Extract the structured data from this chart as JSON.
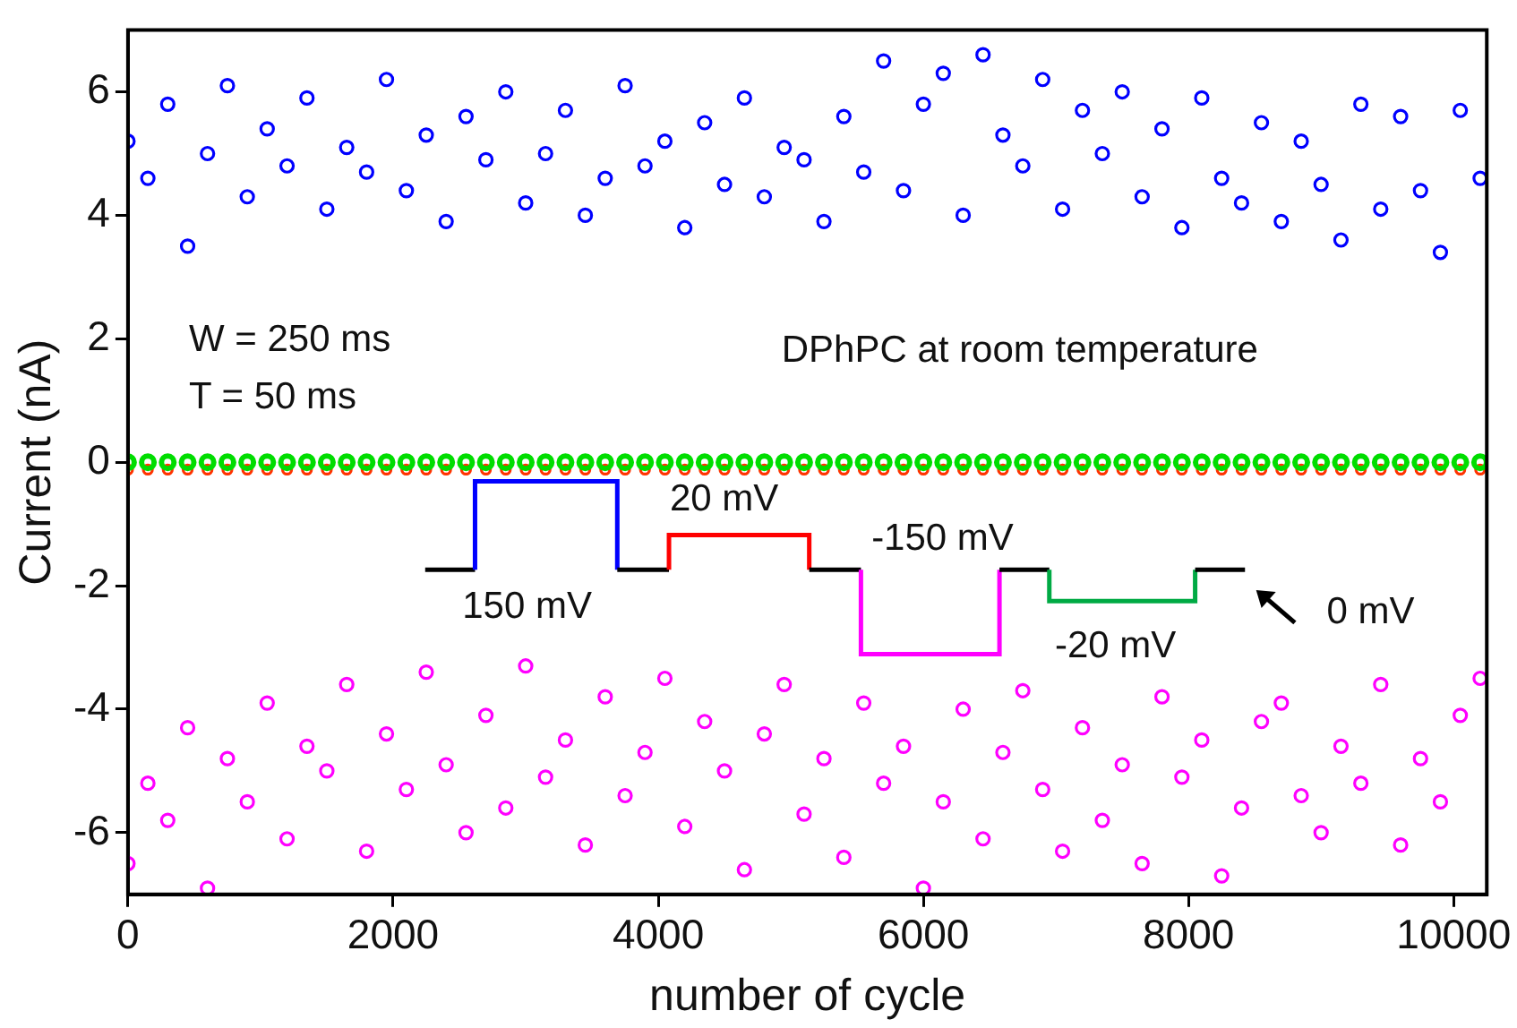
{
  "chart_data": {
    "type": "scatter",
    "xlabel": "number of cycle",
    "ylabel": "Current (nA)",
    "xlim": [
      0,
      10250
    ],
    "ylim": [
      -7,
      7
    ],
    "xticks": [
      0,
      2000,
      4000,
      6000,
      8000,
      10000
    ],
    "yticks": [
      -6,
      -4,
      -2,
      0,
      2,
      4,
      6
    ],
    "grid": false,
    "legend": false,
    "marker": "circle",
    "x": [
      0,
      150,
      300,
      450,
      600,
      750,
      900,
      1050,
      1200,
      1350,
      1500,
      1650,
      1800,
      1950,
      2100,
      2250,
      2400,
      2550,
      2700,
      2850,
      3000,
      3150,
      3300,
      3450,
      3600,
      3750,
      3900,
      4050,
      4200,
      4350,
      4500,
      4650,
      4800,
      4950,
      5100,
      5250,
      5400,
      5550,
      5700,
      5850,
      6000,
      6150,
      6300,
      6450,
      6600,
      6750,
      6900,
      7050,
      7200,
      7350,
      7500,
      7650,
      7800,
      7950,
      8100,
      8250,
      8400,
      8550,
      8700,
      8850,
      9000,
      9150,
      9300,
      9450,
      9600,
      9750,
      9900,
      10050,
      10200
    ],
    "series": [
      {
        "color": "#0000ff",
        "values": [
          5.2,
          4.6,
          5.8,
          3.5,
          5.0,
          6.1,
          4.3,
          5.4,
          4.8,
          5.9,
          4.1,
          5.1,
          4.7,
          6.2,
          4.4,
          5.3,
          3.9,
          5.6,
          4.9,
          6.0,
          4.2,
          5.0,
          5.7,
          4.0,
          4.6,
          6.1,
          4.8,
          5.2,
          3.8,
          5.5,
          4.5,
          5.9,
          4.3,
          5.1,
          4.9,
          3.9,
          5.6,
          4.7,
          6.5,
          4.4,
          5.8,
          6.3,
          4.0,
          6.6,
          5.3,
          4.8,
          6.2,
          4.1,
          5.7,
          5.0,
          6.0,
          4.3,
          5.4,
          3.8,
          5.9,
          4.6,
          4.2,
          5.5,
          3.9,
          5.2,
          4.5,
          3.6,
          5.8,
          4.1,
          5.6,
          4.4,
          3.4,
          5.7,
          4.6
        ]
      },
      {
        "color": "#ff00ff",
        "values": [
          -6.5,
          -5.2,
          -5.8,
          -4.3,
          -6.9,
          -4.8,
          -5.5,
          -3.9,
          -6.1,
          -4.6,
          -5.0,
          -3.6,
          -6.3,
          -4.4,
          -5.3,
          -3.4,
          -4.9,
          -6.0,
          -4.1,
          -5.6,
          -3.3,
          -5.1,
          -4.5,
          -6.2,
          -3.8,
          -5.4,
          -4.7,
          -3.5,
          -5.9,
          -4.2,
          -5.0,
          -6.6,
          -4.4,
          -3.6,
          -5.7,
          -4.8,
          -6.4,
          -3.9,
          -5.2,
          -4.6,
          -6.9,
          -5.5,
          -4.0,
          -6.1,
          -4.7,
          -3.7,
          -5.3,
          -6.3,
          -4.3,
          -5.8,
          -4.9,
          -6.5,
          -3.8,
          -5.1,
          -4.5,
          -6.7,
          -5.6,
          -4.2,
          -3.9,
          -5.4,
          -6.0,
          -4.6,
          -5.2,
          -3.6,
          -6.2,
          -4.8,
          -5.5,
          -4.1,
          -3.5
        ]
      },
      {
        "color": "#ff3300",
        "values": [
          -0.12,
          -0.12,
          -0.12,
          -0.12,
          -0.12,
          -0.12,
          -0.12,
          -0.12,
          -0.12,
          -0.12,
          -0.12,
          -0.12,
          -0.12,
          -0.12,
          -0.12,
          -0.12,
          -0.12,
          -0.12,
          -0.12,
          -0.12,
          -0.12,
          -0.12,
          -0.12,
          -0.12,
          -0.12,
          -0.12,
          -0.12,
          -0.12,
          -0.12,
          -0.12,
          -0.12,
          -0.12,
          -0.12,
          -0.12,
          -0.12,
          -0.12,
          -0.12,
          -0.12,
          -0.12,
          -0.12,
          -0.12,
          -0.12,
          -0.12,
          -0.12,
          -0.12,
          -0.12,
          -0.12,
          -0.12,
          -0.12,
          -0.12,
          -0.12,
          -0.12,
          -0.12,
          -0.12,
          -0.12,
          -0.12,
          -0.12,
          -0.12,
          -0.12,
          -0.12,
          -0.12,
          -0.12,
          -0.12,
          -0.12,
          -0.12,
          -0.12,
          -0.12,
          -0.12,
          -0.12
        ]
      },
      {
        "color": "#00dd00",
        "values": [
          0,
          0,
          0,
          0,
          0,
          0,
          0,
          0,
          0,
          0,
          0,
          0,
          0,
          0,
          0,
          0,
          0,
          0,
          0,
          0,
          0,
          0,
          0,
          0,
          0,
          0,
          0,
          0,
          0,
          0,
          0,
          0,
          0,
          0,
          0,
          0,
          0,
          0,
          0,
          0,
          0,
          0,
          0,
          0,
          0,
          0,
          0,
          0,
          0,
          0,
          0,
          0,
          0,
          0,
          0,
          0,
          0,
          0,
          0,
          0,
          0,
          0,
          0,
          0,
          0,
          0,
          0,
          0,
          0
        ]
      }
    ],
    "annotations": [
      "W = 250 ms",
      "T = 50 ms",
      "DPhPC at room temperature",
      "150 mV",
      "20 mV",
      "-150 mV",
      "-20 mV",
      "0 mV"
    ]
  }
}
